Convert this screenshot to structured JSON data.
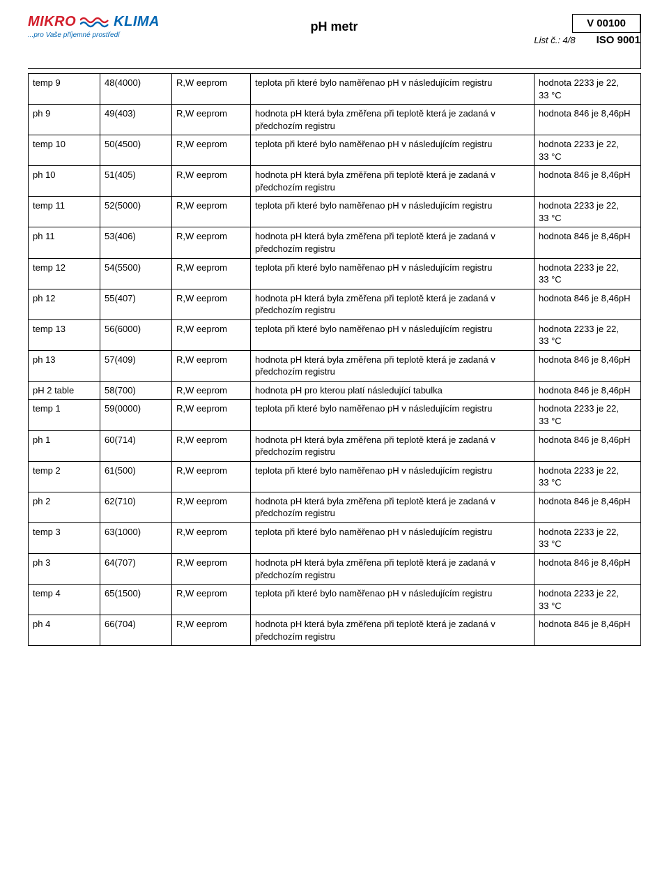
{
  "header": {
    "logo_mikro": "MIKRO",
    "logo_klima": "KLIMA",
    "tagline": "...pro Vaše příjemné prostředí",
    "title": "pH metr",
    "v_box": "V 00100",
    "list_label": "List č.: 4/8",
    "iso": "ISO 9001"
  },
  "rows": [
    {
      "c1": "temp 9",
      "c2": "48(4000)",
      "c3": "R,W eeprom",
      "c4": "teplota při které bylo naměřenao pH v následujícím registru",
      "c5": "hodnota 2233 je 22,\n33 °C"
    },
    {
      "c1": "ph 9",
      "c2": "49(403)",
      "c3": "R,W eeprom",
      "c4": "hodnota pH která byla změřena při teplotě která je zadaná v předchozím registru",
      "c5": "hodnota 846 je 8,46pH"
    },
    {
      "c1": "temp 10",
      "c2": "50(4500)",
      "c3": "R,W eeprom",
      "c4": "teplota při které bylo naměřenao pH v následujícím registru",
      "c5": "hodnota 2233 je 22,\n33 °C"
    },
    {
      "c1": "ph 10",
      "c2": "51(405)",
      "c3": "R,W eeprom",
      "c4": "hodnota pH která byla změřena při teplotě která je zadaná v předchozím registru",
      "c5": "hodnota 846 je 8,46pH"
    },
    {
      "c1": "temp 11",
      "c2": "52(5000)",
      "c3": "R,W eeprom",
      "c4": "teplota při které bylo naměřenao pH v následujícím registru",
      "c5": "hodnota 2233 je 22,\n33 °C"
    },
    {
      "c1": "ph 11",
      "c2": "53(406)",
      "c3": "R,W eeprom",
      "c4": "hodnota pH která byla změřena při teplotě která je zadaná v předchozím registru",
      "c5": "hodnota 846 je 8,46pH"
    },
    {
      "c1": "temp 12",
      "c2": "54(5500)",
      "c3": "R,W eeprom",
      "c4": "teplota při které bylo naměřenao pH v následujícím registru",
      "c5": "hodnota 2233 je 22,\n33 °C"
    },
    {
      "c1": "ph 12",
      "c2": "55(407)",
      "c3": "R,W eeprom",
      "c4": "hodnota pH která byla změřena při teplotě která je zadaná v předchozím registru",
      "c5": "hodnota 846 je 8,46pH"
    },
    {
      "c1": "temp 13",
      "c2": "56(6000)",
      "c3": "R,W eeprom",
      "c4": "teplota při které bylo naměřenao pH v následujícím registru",
      "c5": "hodnota 2233 je 22,\n33 °C"
    },
    {
      "c1": "ph 13",
      "c2": "57(409)",
      "c3": "R,W eeprom",
      "c4": "hodnota pH která byla změřena při teplotě která je zadaná v předchozím registru",
      "c5": "hodnota 846 je 8,46pH"
    },
    {
      "c1": "pH 2 table",
      "c2": "58(700)",
      "c3": "R,W eeprom",
      "c4": "hodnota pH pro kterou platí následující tabulka",
      "c5": "hodnota 846 je 8,46pH"
    },
    {
      "c1": "temp 1",
      "c2": "59(0000)",
      "c3": "R,W eeprom",
      "c4": "teplota při které bylo naměřenao pH v následujícím registru",
      "c5": "hodnota 2233 je 22,\n33 °C"
    },
    {
      "c1": "ph 1",
      "c2": "60(714)",
      "c3": "R,W eeprom",
      "c4": "hodnota pH která byla změřena při teplotě která je zadaná v předchozím registru",
      "c5": "hodnota 846 je 8,46pH"
    },
    {
      "c1": "temp 2",
      "c2": "61(500)",
      "c3": "R,W eeprom",
      "c4": "teplota při které bylo naměřenao pH v následujícím registru",
      "c5": "hodnota 2233 je 22,\n33 °C"
    },
    {
      "c1": "ph 2",
      "c2": "62(710)",
      "c3": "R,W eeprom",
      "c4": "hodnota pH která byla změřena při teplotě která je zadaná v předchozím registru",
      "c5": "hodnota 846 je 8,46pH"
    },
    {
      "c1": "temp 3",
      "c2": "63(1000)",
      "c3": "R,W eeprom",
      "c4": "teplota při které bylo naměřenao pH v následujícím registru",
      "c5": "hodnota 2233 je 22,\n33 °C"
    },
    {
      "c1": "ph 3",
      "c2": "64(707)",
      "c3": "R,W eeprom",
      "c4": "hodnota pH která byla změřena při teplotě která je zadaná v předchozím registru",
      "c5": "hodnota 846 je 8,46pH"
    },
    {
      "c1": "temp 4",
      "c2": "65(1500)",
      "c3": "R,W eeprom",
      "c4": "teplota při které bylo naměřenao pH v následujícím registru",
      "c5": "hodnota 2233 je 22,\n33 °C"
    },
    {
      "c1": "ph 4",
      "c2": "66(704)",
      "c3": "R,W eeprom",
      "c4": "hodnota pH která byla změřena při teplotě která je zadaná v předchozím registru",
      "c5": "hodnota 846 je 8,46pH"
    }
  ]
}
